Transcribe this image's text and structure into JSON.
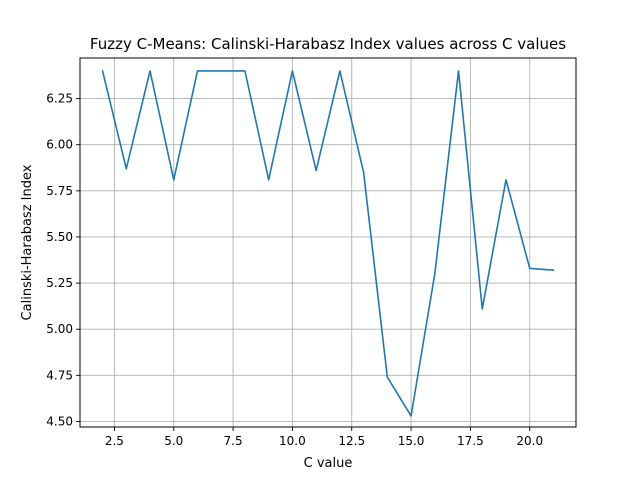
{
  "chart_data": {
    "type": "line",
    "title": "Fuzzy C-Means: Calinski-Harabasz Index values across C values",
    "xlabel": "C value",
    "ylabel": "Calinski-Harabasz Index",
    "xlim": [
      1.05,
      21.95
    ],
    "ylim": [
      4.47,
      6.47
    ],
    "xticks": [
      2.5,
      5.0,
      7.5,
      10.0,
      12.5,
      15.0,
      17.5,
      20.0
    ],
    "xtick_labels": [
      "2.5",
      "5.0",
      "7.5",
      "10.0",
      "12.5",
      "15.0",
      "17.5",
      "20.0"
    ],
    "yticks": [
      4.5,
      4.75,
      5.0,
      5.25,
      5.5,
      5.75,
      6.0,
      6.25
    ],
    "ytick_labels": [
      "4.50",
      "4.75",
      "5.00",
      "5.25",
      "5.50",
      "5.75",
      "6.00",
      "6.25"
    ],
    "grid": true,
    "color": "#1f77b4",
    "x": [
      2,
      3,
      4,
      5,
      6,
      7,
      8,
      9,
      10,
      11,
      12,
      13,
      14,
      15,
      16,
      17,
      18,
      19,
      20,
      21
    ],
    "series": [
      {
        "values": [
          6.4,
          5.87,
          6.4,
          5.81,
          6.4,
          6.4,
          6.4,
          5.81,
          6.4,
          5.86,
          6.4,
          5.85,
          4.74,
          4.53,
          5.3,
          6.4,
          5.11,
          5.81,
          5.33,
          5.32
        ]
      }
    ]
  }
}
